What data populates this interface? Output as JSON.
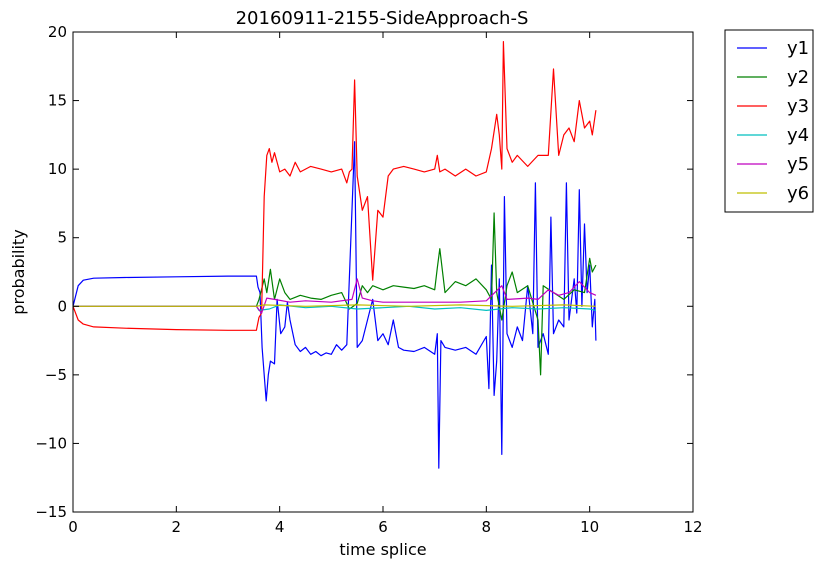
{
  "chart_data": {
    "type": "line",
    "title": "20160911-2155-SideApproach-S",
    "xlabel": "time splice",
    "ylabel": "probability",
    "xlim": [
      0,
      12
    ],
    "ylim": [
      -15,
      20
    ],
    "xticks": [
      "0",
      "2",
      "4",
      "6",
      "8",
      "10",
      "12"
    ],
    "yticks": [
      "−15",
      "−10",
      "−5",
      "0",
      "5",
      "10",
      "15",
      "20"
    ],
    "grid": false,
    "legend_position": "outside-top-right",
    "series": [
      {
        "name": "y1",
        "color": "#0000ff",
        "points": [
          [
            0,
            0
          ],
          [
            0.1,
            1.5
          ],
          [
            0.2,
            1.9
          ],
          [
            0.4,
            2.05
          ],
          [
            1,
            2.1
          ],
          [
            2,
            2.15
          ],
          [
            3,
            2.2
          ],
          [
            3.55,
            2.2
          ],
          [
            3.58,
            1.4
          ],
          [
            3.62,
            1.0
          ],
          [
            3.66,
            -3.0
          ],
          [
            3.7,
            -5.0
          ],
          [
            3.74,
            -6.9
          ],
          [
            3.78,
            -5.0
          ],
          [
            3.82,
            -4.0
          ],
          [
            3.9,
            -4.2
          ],
          [
            3.95,
            0.5
          ],
          [
            4.02,
            -2.0
          ],
          [
            4.1,
            -1.5
          ],
          [
            4.15,
            0.3
          ],
          [
            4.2,
            -1.0
          ],
          [
            4.3,
            -2.8
          ],
          [
            4.4,
            -3.3
          ],
          [
            4.5,
            -3.0
          ],
          [
            4.6,
            -3.5
          ],
          [
            4.7,
            -3.3
          ],
          [
            4.8,
            -3.6
          ],
          [
            4.9,
            -3.4
          ],
          [
            5.0,
            -3.5
          ],
          [
            5.1,
            -2.8
          ],
          [
            5.2,
            -3.2
          ],
          [
            5.3,
            -2.8
          ],
          [
            5.45,
            12.0
          ],
          [
            5.5,
            -3.0
          ],
          [
            5.6,
            -2.5
          ],
          [
            5.7,
            -1.0
          ],
          [
            5.8,
            0.5
          ],
          [
            5.9,
            -2.5
          ],
          [
            6.0,
            -2.0
          ],
          [
            6.1,
            -2.8
          ],
          [
            6.2,
            -1.0
          ],
          [
            6.3,
            -3.0
          ],
          [
            6.4,
            -3.2
          ],
          [
            6.6,
            -3.3
          ],
          [
            6.8,
            -3.0
          ],
          [
            7.0,
            -3.5
          ],
          [
            7.05,
            -2.0
          ],
          [
            7.08,
            -11.8
          ],
          [
            7.12,
            -2.5
          ],
          [
            7.2,
            -3.0
          ],
          [
            7.4,
            -3.2
          ],
          [
            7.6,
            -3.0
          ],
          [
            7.8,
            -3.5
          ],
          [
            8.0,
            -2.2
          ],
          [
            8.05,
            -6.0
          ],
          [
            8.1,
            3.0
          ],
          [
            8.15,
            -6.5
          ],
          [
            8.2,
            -4.0
          ],
          [
            8.25,
            2.0
          ],
          [
            8.3,
            -10.8
          ],
          [
            8.35,
            8.0
          ],
          [
            8.4,
            -2.0
          ],
          [
            8.5,
            -3.0
          ],
          [
            8.6,
            -1.5
          ],
          [
            8.7,
            -2.5
          ],
          [
            8.8,
            1.5
          ],
          [
            8.9,
            -2.0
          ],
          [
            8.95,
            9.0
          ],
          [
            9.0,
            -3.0
          ],
          [
            9.1,
            -2.0
          ],
          [
            9.2,
            -3.5
          ],
          [
            9.25,
            6.5
          ],
          [
            9.3,
            -2.0
          ],
          [
            9.4,
            -1.0
          ],
          [
            9.5,
            -1.5
          ],
          [
            9.55,
            9.0
          ],
          [
            9.6,
            -1.0
          ],
          [
            9.7,
            2.0
          ],
          [
            9.75,
            -0.5
          ],
          [
            9.8,
            8.5
          ],
          [
            9.85,
            0.0
          ],
          [
            9.9,
            6.0
          ],
          [
            9.95,
            1.0
          ],
          [
            10.0,
            3.0
          ],
          [
            10.05,
            -1.5
          ],
          [
            10.1,
            0.5
          ],
          [
            10.12,
            -2.5
          ]
        ]
      },
      {
        "name": "y2",
        "color": "#008000",
        "points": [
          [
            0,
            0
          ],
          [
            3.55,
            0
          ],
          [
            3.6,
            0.5
          ],
          [
            3.7,
            2.0
          ],
          [
            3.75,
            1.0
          ],
          [
            3.82,
            2.7
          ],
          [
            3.9,
            0.5
          ],
          [
            4.0,
            2.0
          ],
          [
            4.1,
            1.0
          ],
          [
            4.2,
            0.5
          ],
          [
            4.4,
            0.8
          ],
          [
            4.6,
            0.6
          ],
          [
            4.8,
            0.5
          ],
          [
            5.0,
            0.8
          ],
          [
            5.2,
            1.0
          ],
          [
            5.35,
            -0.2
          ],
          [
            5.5,
            0.2
          ],
          [
            5.6,
            1.5
          ],
          [
            5.7,
            1.0
          ],
          [
            5.8,
            1.5
          ],
          [
            6.0,
            1.2
          ],
          [
            6.2,
            1.5
          ],
          [
            6.4,
            1.4
          ],
          [
            6.6,
            1.3
          ],
          [
            6.8,
            1.5
          ],
          [
            7.0,
            1.2
          ],
          [
            7.05,
            2.8
          ],
          [
            7.1,
            4.2
          ],
          [
            7.2,
            1.0
          ],
          [
            7.4,
            1.8
          ],
          [
            7.6,
            1.5
          ],
          [
            7.8,
            2.0
          ],
          [
            8.0,
            1.2
          ],
          [
            8.1,
            0.5
          ],
          [
            8.15,
            6.8
          ],
          [
            8.2,
            1.0
          ],
          [
            8.3,
            -1.0
          ],
          [
            8.4,
            1.5
          ],
          [
            8.5,
            2.5
          ],
          [
            8.6,
            1.0
          ],
          [
            8.8,
            1.5
          ],
          [
            9.0,
            -1.0
          ],
          [
            9.05,
            -5.0
          ],
          [
            9.1,
            1.5
          ],
          [
            9.3,
            1.0
          ],
          [
            9.5,
            0.5
          ],
          [
            9.7,
            1.2
          ],
          [
            9.9,
            1.0
          ],
          [
            10.0,
            3.5
          ],
          [
            10.05,
            2.5
          ],
          [
            10.12,
            3.0
          ]
        ]
      },
      {
        "name": "y3",
        "color": "#ff0000",
        "points": [
          [
            0,
            0
          ],
          [
            0.1,
            -1.0
          ],
          [
            0.2,
            -1.3
          ],
          [
            0.4,
            -1.5
          ],
          [
            1,
            -1.6
          ],
          [
            2,
            -1.7
          ],
          [
            3,
            -1.75
          ],
          [
            3.55,
            -1.75
          ],
          [
            3.6,
            -0.8
          ],
          [
            3.65,
            -0.5
          ],
          [
            3.7,
            8.0
          ],
          [
            3.75,
            11.0
          ],
          [
            3.8,
            11.5
          ],
          [
            3.85,
            10.5
          ],
          [
            3.9,
            11.2
          ],
          [
            4.0,
            9.8
          ],
          [
            4.1,
            10.0
          ],
          [
            4.2,
            9.5
          ],
          [
            4.3,
            10.5
          ],
          [
            4.4,
            9.8
          ],
          [
            4.6,
            10.2
          ],
          [
            4.8,
            10.0
          ],
          [
            5.0,
            9.8
          ],
          [
            5.2,
            10.0
          ],
          [
            5.3,
            9.0
          ],
          [
            5.35,
            9.8
          ],
          [
            5.4,
            10.0
          ],
          [
            5.45,
            16.5
          ],
          [
            5.5,
            9.5
          ],
          [
            5.6,
            7.0
          ],
          [
            5.7,
            8.0
          ],
          [
            5.8,
            1.9
          ],
          [
            5.9,
            7.0
          ],
          [
            6.0,
            6.5
          ],
          [
            6.1,
            9.5
          ],
          [
            6.2,
            10.0
          ],
          [
            6.4,
            10.2
          ],
          [
            6.6,
            10.0
          ],
          [
            6.8,
            9.8
          ],
          [
            7.0,
            10.0
          ],
          [
            7.05,
            11.0
          ],
          [
            7.1,
            9.8
          ],
          [
            7.2,
            10.0
          ],
          [
            7.4,
            9.5
          ],
          [
            7.6,
            10.0
          ],
          [
            7.8,
            9.5
          ],
          [
            8.0,
            9.8
          ],
          [
            8.1,
            11.5
          ],
          [
            8.2,
            14.0
          ],
          [
            8.25,
            12.5
          ],
          [
            8.3,
            10.0
          ],
          [
            8.33,
            19.3
          ],
          [
            8.4,
            11.5
          ],
          [
            8.5,
            10.5
          ],
          [
            8.6,
            11.0
          ],
          [
            8.8,
            10.2
          ],
          [
            9.0,
            11.0
          ],
          [
            9.2,
            11.0
          ],
          [
            9.3,
            17.3
          ],
          [
            9.4,
            11.0
          ],
          [
            9.5,
            12.5
          ],
          [
            9.6,
            13.0
          ],
          [
            9.7,
            12.0
          ],
          [
            9.8,
            15.0
          ],
          [
            9.9,
            13.0
          ],
          [
            10.0,
            13.5
          ],
          [
            10.05,
            12.5
          ],
          [
            10.12,
            14.3
          ]
        ]
      },
      {
        "name": "y4",
        "color": "#00bfbf",
        "points": [
          [
            0,
            0
          ],
          [
            3.55,
            0
          ],
          [
            3.6,
            -0.3
          ],
          [
            3.8,
            -0.2
          ],
          [
            4.0,
            0.1
          ],
          [
            4.5,
            -0.1
          ],
          [
            5.0,
            0.0
          ],
          [
            5.5,
            -0.2
          ],
          [
            6.0,
            -0.1
          ],
          [
            6.5,
            0.0
          ],
          [
            7.0,
            -0.2
          ],
          [
            7.5,
            -0.1
          ],
          [
            8.0,
            -0.3
          ],
          [
            8.5,
            -0.1
          ],
          [
            9.0,
            -0.2
          ],
          [
            9.5,
            -0.1
          ],
          [
            10.0,
            -0.2
          ],
          [
            10.12,
            -0.3
          ]
        ]
      },
      {
        "name": "y5",
        "color": "#bf00bf",
        "points": [
          [
            0,
            0
          ],
          [
            3.55,
            0
          ],
          [
            3.65,
            -0.5
          ],
          [
            3.75,
            0.6
          ],
          [
            3.9,
            0.5
          ],
          [
            4.2,
            0.3
          ],
          [
            4.5,
            0.4
          ],
          [
            5.0,
            0.3
          ],
          [
            5.4,
            0.5
          ],
          [
            5.5,
            2.0
          ],
          [
            5.6,
            0.6
          ],
          [
            5.8,
            0.4
          ],
          [
            6.0,
            0.3
          ],
          [
            6.5,
            0.3
          ],
          [
            7.0,
            0.3
          ],
          [
            7.5,
            0.3
          ],
          [
            8.0,
            0.4
          ],
          [
            8.3,
            1.5
          ],
          [
            8.4,
            0.5
          ],
          [
            8.8,
            0.6
          ],
          [
            9.0,
            0.5
          ],
          [
            9.2,
            1.2
          ],
          [
            9.4,
            0.8
          ],
          [
            9.6,
            1.0
          ],
          [
            9.8,
            1.8
          ],
          [
            10.0,
            1.0
          ],
          [
            10.12,
            0.8
          ]
        ]
      },
      {
        "name": "y6",
        "color": "#bfbf00",
        "points": [
          [
            0,
            0
          ],
          [
            3.55,
            0
          ],
          [
            3.7,
            0.1
          ],
          [
            4.5,
            0.0
          ],
          [
            5.5,
            0.1
          ],
          [
            6.5,
            0.0
          ],
          [
            7.5,
            0.1
          ],
          [
            8.5,
            0.0
          ],
          [
            9.5,
            0.1
          ],
          [
            10.12,
            0.0
          ]
        ]
      }
    ]
  }
}
